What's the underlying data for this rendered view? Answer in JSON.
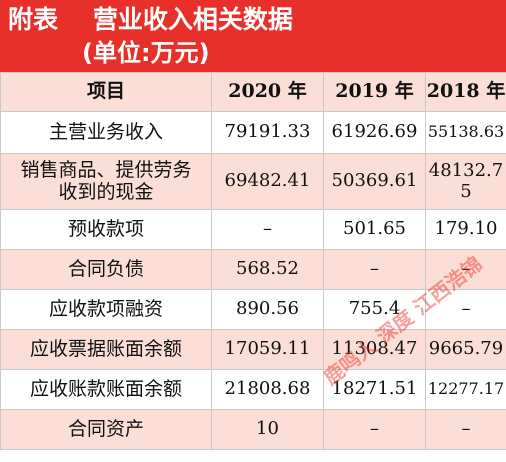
{
  "title": {
    "line1": "附表    营业收入相关数据",
    "line2": "(单位:万元)"
  },
  "table": {
    "headers": [
      "项目",
      "2020 年",
      "2019 年",
      "2018 年"
    ],
    "rows": [
      [
        "主营业务收入",
        "79191.33",
        "61926.69",
        "55138.63"
      ],
      [
        "销售商品、提供劳务\n收到的现金",
        "69482.41",
        "50369.61",
        "48132.7\n5"
      ],
      [
        "预收款项",
        "–",
        "501.65",
        "179.10"
      ],
      [
        "合同负债",
        "568.52",
        "–",
        "–"
      ],
      [
        "应收款项融资",
        "890.56",
        "755.4",
        "–"
      ],
      [
        "应收票据账面余额",
        "17059.11",
        "11308.47",
        "9665.79"
      ],
      [
        "应收账款账面余额",
        "21808.68",
        "18271.51",
        "12277.17"
      ],
      [
        "合同资产",
        "10",
        "–",
        "–"
      ]
    ]
  },
  "watermark": "鹿鸣人 深度 江西浩锦"
}
